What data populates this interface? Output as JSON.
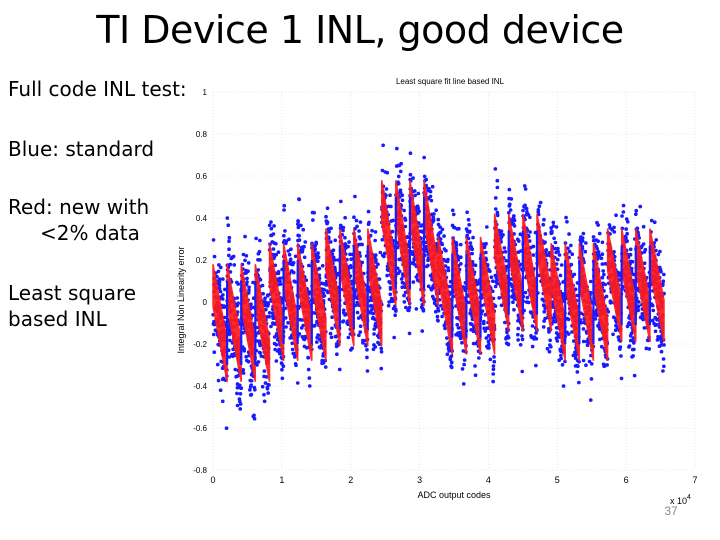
{
  "slide": {
    "title": "TI Device 1 INL, good device",
    "bullets": [
      {
        "lines": [
          "Full code INL test:"
        ]
      },
      {
        "lines": [
          "Blue: standard"
        ]
      },
      {
        "lines": [
          "Red: new with",
          "<2% data"
        ]
      },
      {
        "lines": [
          "Least square",
          "based INL"
        ]
      }
    ],
    "slide_number": "37"
  },
  "chart_data": {
    "type": "scatter",
    "title": "Least square fit line based INL",
    "xlabel": "ADC output codes",
    "ylabel": "Integral Non Linearity error",
    "x_multiplier_label": "x 10",
    "x_multiplier_exponent": "4",
    "xlim": [
      0,
      7
    ],
    "ylim": [
      -0.8,
      1
    ],
    "x_ticks": [
      "0",
      "1",
      "2",
      "3",
      "4",
      "5",
      "6",
      "7"
    ],
    "y_ticks": [
      "1",
      "0.8",
      "0.6",
      "0.4",
      "0.2",
      "0",
      "-0.2",
      "-0.4",
      "-0.6",
      "-0.8"
    ],
    "grid": true,
    "x_data_end": 6.55,
    "colors": {
      "standard": "#1a1aff",
      "new": "#ff1a1a",
      "grid": "#d8d8d8"
    },
    "segments": [
      {
        "x": [
          0.0,
          0.82
        ],
        "center": -0.1,
        "amp": 0.18,
        "spread": 0.42,
        "red_spread": 0.1
      },
      {
        "x": [
          0.82,
          1.64
        ],
        "center": 0.0,
        "amp": 0.18,
        "spread": 0.4,
        "red_spread": 0.1
      },
      {
        "x": [
          1.64,
          2.45
        ],
        "center": 0.07,
        "amp": 0.18,
        "spread": 0.38,
        "red_spread": 0.1
      },
      {
        "x": [
          2.45,
          3.27
        ],
        "center": 0.28,
        "amp": 0.2,
        "spread": 0.38,
        "red_spread": 0.1
      },
      {
        "x": [
          3.27,
          4.09
        ],
        "center": 0.03,
        "amp": 0.18,
        "spread": 0.38,
        "red_spread": 0.1
      },
      {
        "x": [
          4.09,
          4.91
        ],
        "center": 0.14,
        "amp": 0.18,
        "spread": 0.38,
        "red_spread": 0.1
      },
      {
        "x": [
          4.91,
          5.73
        ],
        "center": 0.0,
        "amp": 0.18,
        "spread": 0.38,
        "red_spread": 0.1
      },
      {
        "x": [
          5.73,
          6.55
        ],
        "center": 0.08,
        "amp": 0.17,
        "spread": 0.38,
        "red_spread": 0.1
      }
    ],
    "sawtooth_periods_per_segment": 4
  }
}
